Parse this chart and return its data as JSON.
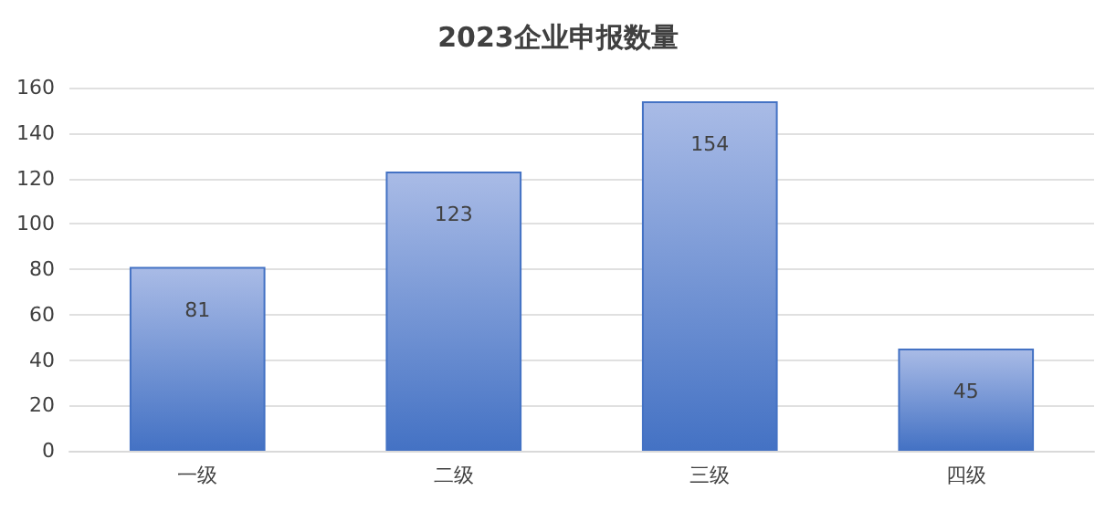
{
  "chart_data": {
    "type": "bar",
    "title": "2023企业申报数量",
    "categories": [
      "一级",
      "二级",
      "三级",
      "四级"
    ],
    "values": [
      81,
      123,
      154,
      45
    ],
    "color": "#4472c4",
    "ylim": [
      0,
      160
    ],
    "yticks": [
      0,
      20,
      40,
      60,
      80,
      100,
      120,
      140,
      160
    ],
    "grid": "y",
    "data_labels": true
  }
}
